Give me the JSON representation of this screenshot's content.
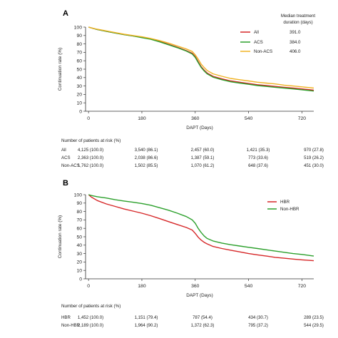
{
  "chart_data": [
    {
      "panel_label": "A",
      "type": "line",
      "xlabel": "DAPT (Days)",
      "ylabel": "Continuation rate (%)",
      "xlim": [
        -10,
        760
      ],
      "ylim": [
        0,
        100
      ],
      "xticks": [
        0,
        180,
        360,
        540,
        720
      ],
      "yticks": [
        0,
        10,
        20,
        30,
        40,
        50,
        60,
        70,
        80,
        90,
        100
      ],
      "grid": false,
      "legend_position": "top-right",
      "legend_header": "Median treatment\nduration (days)",
      "series": [
        {
          "name": "All",
          "color": "#d62728",
          "median_label": "391.0",
          "x": [
            0,
            10,
            30,
            60,
            90,
            120,
            150,
            180,
            210,
            240,
            270,
            300,
            330,
            350,
            360,
            370,
            380,
            390,
            400,
            420,
            450,
            480,
            510,
            540,
            570,
            600,
            630,
            660,
            690,
            720,
            760
          ],
          "y": [
            100,
            99,
            97,
            95,
            93,
            91,
            89.5,
            88,
            86,
            83,
            79.5,
            76,
            72,
            69,
            65,
            59,
            53,
            49,
            45.5,
            41.5,
            38.5,
            36,
            34.5,
            33,
            31.5,
            30.5,
            29.5,
            28.5,
            27.5,
            26.5,
            25
          ]
        },
        {
          "name": "ACS",
          "color": "#2ca02c",
          "median_label": "384.0",
          "x": [
            0,
            10,
            30,
            60,
            90,
            120,
            150,
            180,
            210,
            240,
            270,
            300,
            330,
            350,
            360,
            370,
            380,
            390,
            400,
            420,
            450,
            480,
            510,
            540,
            570,
            600,
            630,
            660,
            690,
            720,
            760
          ],
          "y": [
            100,
            99,
            97,
            95,
            93,
            91,
            89.5,
            87.5,
            85.5,
            82.5,
            79,
            75.5,
            71.5,
            68,
            64,
            58,
            52,
            48,
            44.5,
            40.5,
            37.5,
            35,
            33.5,
            32,
            30.5,
            29.5,
            28.5,
            27.5,
            26.5,
            25.5,
            24
          ]
        },
        {
          "name": "Non-ACS",
          "color": "#f0b323",
          "median_label": "406.0",
          "x": [
            0,
            10,
            30,
            60,
            90,
            120,
            150,
            180,
            210,
            240,
            270,
            300,
            330,
            350,
            360,
            370,
            380,
            390,
            400,
            420,
            450,
            480,
            510,
            540,
            570,
            600,
            630,
            660,
            690,
            720,
            760
          ],
          "y": [
            100,
            99,
            97.5,
            95.5,
            93.5,
            91.5,
            90,
            88.5,
            86.5,
            84,
            81,
            77.5,
            74,
            71,
            67,
            62,
            56,
            52,
            48.5,
            44.5,
            41.5,
            39,
            37.5,
            36,
            34.5,
            33.5,
            32.5,
            31,
            30,
            29,
            27.5
          ]
        }
      ],
      "risk_table": {
        "title": "Number of patients at risk (%)",
        "rows": [
          {
            "label": "All",
            "values": [
              "4,125 (100.0)",
              "3,540 (86.1)",
              "2,457 (60.0)",
              "1,421 (35.3)",
              "970 (27.8)"
            ]
          },
          {
            "label": "ACS",
            "values": [
              "2,363 (100.0)",
              "2,038 (86.6)",
              "1,387 (59.1)",
              "773 (33.6)",
              "519 (26.2)"
            ]
          },
          {
            "label": "Non-ACS",
            "values": [
              "1,762 (100.0)",
              "1,502 (85.5)",
              "1,070 (61.2)",
              "648 (37.6)",
              "451 (30.0)"
            ]
          }
        ]
      }
    },
    {
      "panel_label": "B",
      "type": "line",
      "xlabel": "DAPT (Days)",
      "ylabel": "Continuation rate (%)",
      "xlim": [
        -10,
        760
      ],
      "ylim": [
        0,
        100
      ],
      "xticks": [
        0,
        180,
        360,
        540,
        720
      ],
      "yticks": [
        0,
        10,
        20,
        30,
        40,
        50,
        60,
        70,
        80,
        90,
        100
      ],
      "grid": false,
      "legend_position": "top-right",
      "series": [
        {
          "name": "HBR",
          "color": "#d62728",
          "x": [
            0,
            10,
            30,
            60,
            90,
            120,
            150,
            180,
            210,
            240,
            270,
            300,
            330,
            350,
            360,
            370,
            380,
            390,
            400,
            420,
            450,
            480,
            510,
            540,
            570,
            600,
            630,
            660,
            690,
            720,
            760
          ],
          "y": [
            100,
            97,
            93,
            89,
            86,
            83,
            80.5,
            78,
            75,
            71.5,
            68,
            64.5,
            61,
            58,
            54,
            49.5,
            46,
            43.5,
            41.5,
            38.5,
            36,
            34,
            32,
            30,
            28.5,
            27,
            25.5,
            24.5,
            23.5,
            22.5,
            21.5
          ]
        },
        {
          "name": "Non-HBR",
          "color": "#2ca02c",
          "x": [
            0,
            10,
            30,
            60,
            90,
            120,
            150,
            180,
            210,
            240,
            270,
            300,
            330,
            350,
            360,
            370,
            380,
            390,
            400,
            420,
            450,
            480,
            510,
            540,
            570,
            600,
            630,
            660,
            690,
            720,
            760
          ],
          "y": [
            100,
            99,
            97.5,
            96,
            94,
            92.5,
            91,
            89.5,
            87.5,
            84.5,
            81.5,
            78,
            74,
            70,
            66,
            60,
            55,
            51,
            48,
            45,
            42.5,
            40.5,
            39,
            37.5,
            36,
            34.5,
            33,
            31.5,
            30,
            29,
            27
          ]
        }
      ],
      "risk_table": {
        "title": "Number of patients at risk (%)",
        "rows": [
          {
            "label": "HBR",
            "values": [
              "1,452 (100.0)",
              "1,151 (79.4)",
              "787 (54.4)",
              "434 (30.7)",
              "289 (23.5)"
            ]
          },
          {
            "label": "Non-HBR",
            "values": [
              "2,189 (100.0)",
              "1,964 (90.2)",
              "1,372 (62.3)",
              "795 (37.2)",
              "544 (29.5)"
            ]
          }
        ]
      }
    }
  ]
}
